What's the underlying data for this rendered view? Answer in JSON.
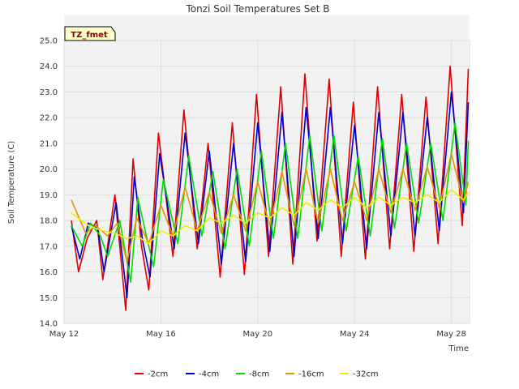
{
  "chart_data": {
    "type": "line",
    "title": "Tonzi Soil Temperatures Set B",
    "xlabel": "Time",
    "ylabel": "Soil Temperature (C)",
    "badge": "TZ_fmet",
    "xlim": [
      12.0,
      28.75
    ],
    "ylim": [
      14.0,
      25.0
    ],
    "x_ticks": [
      {
        "value": 12,
        "label": "May 12"
      },
      {
        "value": 16,
        "label": "May 16"
      },
      {
        "value": 20,
        "label": "May 20"
      },
      {
        "value": 24,
        "label": "May 24"
      },
      {
        "value": 28,
        "label": "May 28"
      }
    ],
    "y_ticks": [
      {
        "value": 14,
        "label": "14.0"
      },
      {
        "value": 15,
        "label": "15.0"
      },
      {
        "value": 16,
        "label": "16.0"
      },
      {
        "value": 17,
        "label": "17.0"
      },
      {
        "value": 18,
        "label": "18.0"
      },
      {
        "value": 19,
        "label": "19.0"
      },
      {
        "value": 20,
        "label": "20.0"
      },
      {
        "value": 21,
        "label": "21.0"
      },
      {
        "value": 22,
        "label": "22.0"
      },
      {
        "value": 23,
        "label": "23.0"
      },
      {
        "value": 24,
        "label": "24.0"
      },
      {
        "value": 25,
        "label": "25.0"
      }
    ],
    "grid": true,
    "legend_position": "bottom",
    "series": [
      {
        "name": "-2cm",
        "color": "#dd0000",
        "x": [
          12.3,
          12.6,
          12.95,
          13.35,
          13.6,
          14.1,
          14.55,
          14.85,
          15.2,
          15.5,
          15.9,
          16.5,
          16.95,
          17.5,
          17.95,
          18.45,
          18.95,
          19.45,
          19.95,
          20.45,
          20.95,
          21.45,
          21.95,
          22.45,
          22.95,
          23.45,
          23.95,
          24.45,
          24.95,
          25.45,
          25.95,
          26.45,
          26.95,
          27.45,
          27.95,
          28.45,
          28.7
        ],
        "y": [
          18.0,
          16.0,
          17.3,
          18.0,
          15.7,
          19.0,
          14.5,
          20.4,
          17.0,
          15.3,
          21.4,
          16.6,
          22.3,
          16.9,
          21.0,
          15.8,
          21.8,
          15.9,
          22.9,
          16.6,
          23.2,
          16.3,
          23.7,
          17.2,
          23.5,
          16.6,
          22.6,
          16.5,
          23.2,
          16.9,
          22.9,
          16.8,
          22.8,
          17.1,
          24.0,
          17.8,
          23.9
        ]
      },
      {
        "name": "-4cm",
        "color": "#0000cc",
        "x": [
          12.3,
          12.65,
          13.0,
          13.4,
          13.65,
          14.15,
          14.6,
          14.9,
          15.25,
          15.55,
          15.95,
          16.55,
          17.0,
          17.55,
          18.0,
          18.5,
          19.0,
          19.5,
          20.0,
          20.5,
          21.0,
          21.5,
          22.0,
          22.5,
          23.0,
          23.5,
          24.0,
          24.5,
          25.0,
          25.5,
          26.0,
          26.5,
          27.0,
          27.5,
          28.0,
          28.5,
          28.7
        ],
        "y": [
          17.8,
          16.5,
          17.9,
          17.7,
          16.0,
          18.7,
          15.0,
          19.7,
          17.2,
          15.8,
          20.6,
          16.9,
          21.4,
          17.1,
          20.7,
          16.3,
          21.0,
          16.4,
          21.8,
          16.8,
          22.2,
          16.6,
          22.4,
          17.3,
          22.4,
          17.1,
          21.7,
          16.9,
          22.2,
          17.4,
          22.2,
          17.4,
          22.0,
          17.6,
          23.0,
          18.3,
          22.6
        ]
      },
      {
        "name": "-8cm",
        "color": "#00dd00",
        "x": [
          12.3,
          12.75,
          13.1,
          13.5,
          13.8,
          14.3,
          14.75,
          15.05,
          15.4,
          15.7,
          16.1,
          16.7,
          17.15,
          17.7,
          18.15,
          18.65,
          19.15,
          19.65,
          20.15,
          20.65,
          21.15,
          21.65,
          22.15,
          22.65,
          23.15,
          23.65,
          24.15,
          24.65,
          25.15,
          25.65,
          26.15,
          26.65,
          27.15,
          27.65,
          28.15,
          28.6,
          28.7
        ],
        "y": [
          17.8,
          17.0,
          17.9,
          17.4,
          16.6,
          18.0,
          15.6,
          18.9,
          17.4,
          16.2,
          19.6,
          17.1,
          20.5,
          17.4,
          19.9,
          16.9,
          20.0,
          17.0,
          20.7,
          17.3,
          21.0,
          17.3,
          21.3,
          17.6,
          21.3,
          17.6,
          20.5,
          17.4,
          21.2,
          17.7,
          21.0,
          17.9,
          21.0,
          18.0,
          21.8,
          18.6,
          21.1
        ]
      },
      {
        "name": "-16cm",
        "color": "#e69500",
        "x": [
          12.3,
          12.9,
          13.3,
          13.8,
          14.2,
          14.6,
          15.0,
          15.5,
          16.0,
          16.5,
          17.0,
          17.5,
          18.0,
          18.5,
          19.0,
          19.5,
          20.0,
          20.5,
          21.0,
          21.5,
          22.0,
          22.5,
          23.0,
          23.5,
          24.0,
          24.5,
          25.0,
          25.5,
          26.0,
          26.5,
          27.0,
          27.5,
          28.0,
          28.5,
          28.7
        ],
        "y": [
          18.8,
          17.5,
          17.8,
          17.4,
          17.9,
          16.4,
          18.1,
          17.1,
          18.6,
          17.4,
          19.3,
          17.6,
          19.1,
          17.5,
          19.0,
          17.6,
          19.5,
          17.8,
          19.9,
          17.8,
          20.0,
          17.9,
          20.0,
          18.0,
          19.5,
          18.0,
          20.0,
          18.3,
          20.0,
          18.4,
          20.1,
          18.5,
          20.6,
          18.7,
          19.5
        ]
      },
      {
        "name": "-32cm",
        "color": "#eeee00",
        "x": [
          12.3,
          13.0,
          13.6,
          14.1,
          14.6,
          15.0,
          15.5,
          16.0,
          16.5,
          17.0,
          17.5,
          18.0,
          18.5,
          19.0,
          19.5,
          20.0,
          20.5,
          21.0,
          21.5,
          22.0,
          22.5,
          23.0,
          23.5,
          24.0,
          24.5,
          25.0,
          25.5,
          26.0,
          26.5,
          27.0,
          27.5,
          28.0,
          28.5,
          28.7
        ],
        "y": [
          18.3,
          17.8,
          17.6,
          17.5,
          17.3,
          17.4,
          17.1,
          17.6,
          17.4,
          17.8,
          17.6,
          18.1,
          17.9,
          18.2,
          17.9,
          18.3,
          18.1,
          18.5,
          18.2,
          18.7,
          18.4,
          18.8,
          18.5,
          18.9,
          18.5,
          18.9,
          18.6,
          18.9,
          18.7,
          19.0,
          18.7,
          19.2,
          18.8,
          19.1
        ]
      }
    ]
  }
}
